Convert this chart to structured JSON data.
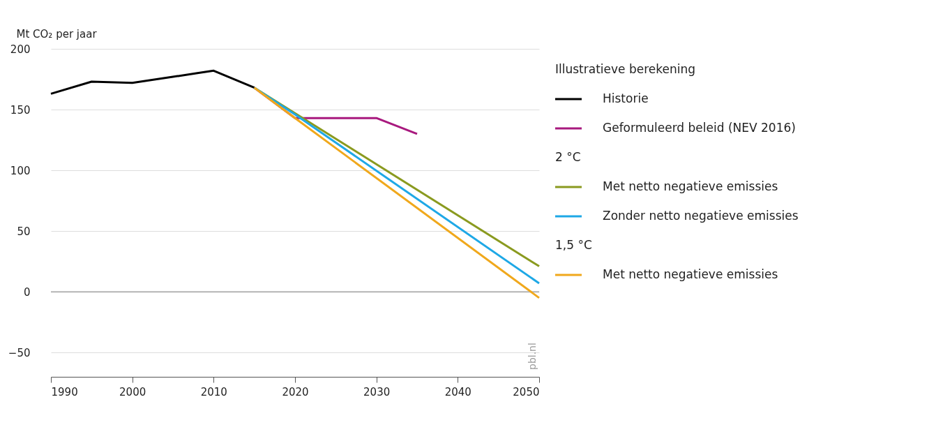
{
  "chart_data": {
    "type": "line",
    "ylabel": "Mt CO₂ per jaar",
    "legend_title": "Illustratieve berekening",
    "legend": "right",
    "grid": "y",
    "marker": "none",
    "line_style": "solid",
    "xlim": [
      1990,
      2050
    ],
    "xticks": [
      1990,
      2000,
      2010,
      2020,
      2030,
      2040,
      2050
    ],
    "ylim": [
      -70,
      200
    ],
    "yticks": [
      -50,
      0,
      50,
      100,
      150,
      200
    ],
    "ref_lines": [
      {
        "axis": "y",
        "value": 0,
        "color": "#b4b4b4"
      }
    ],
    "annotations": [
      "2 °C",
      "1,5 °C",
      "pbl.nl"
    ],
    "series": [
      {
        "name": "Historie",
        "color": "#000000",
        "x": [
          1990,
          1995,
          2000,
          2005,
          2008,
          2010,
          2015
        ],
        "values": [
          163,
          173,
          172,
          177,
          180,
          182,
          168
        ]
      },
      {
        "name": "Geformuleerd beleid (NEV 2016)",
        "color": "#a8197e",
        "x": [
          2015,
          2020,
          2030,
          2035
        ],
        "values": [
          168,
          143,
          143,
          130
        ]
      },
      {
        "name": "Met netto negatieve emissies",
        "color": "#8a9a1f",
        "x": [
          2015,
          2050
        ],
        "values": [
          168,
          21
        ]
      },
      {
        "name": "Zonder netto negatieve emissies",
        "color": "#1ea8e6",
        "x": [
          2015,
          2020,
          2050
        ],
        "values": [
          168,
          146,
          7
        ]
      },
      {
        "name": "Met netto negatieve emissies",
        "color": "#f0a81c",
        "x": [
          2015,
          2020,
          2050
        ],
        "values": [
          168,
          143,
          -5
        ]
      }
    ]
  }
}
